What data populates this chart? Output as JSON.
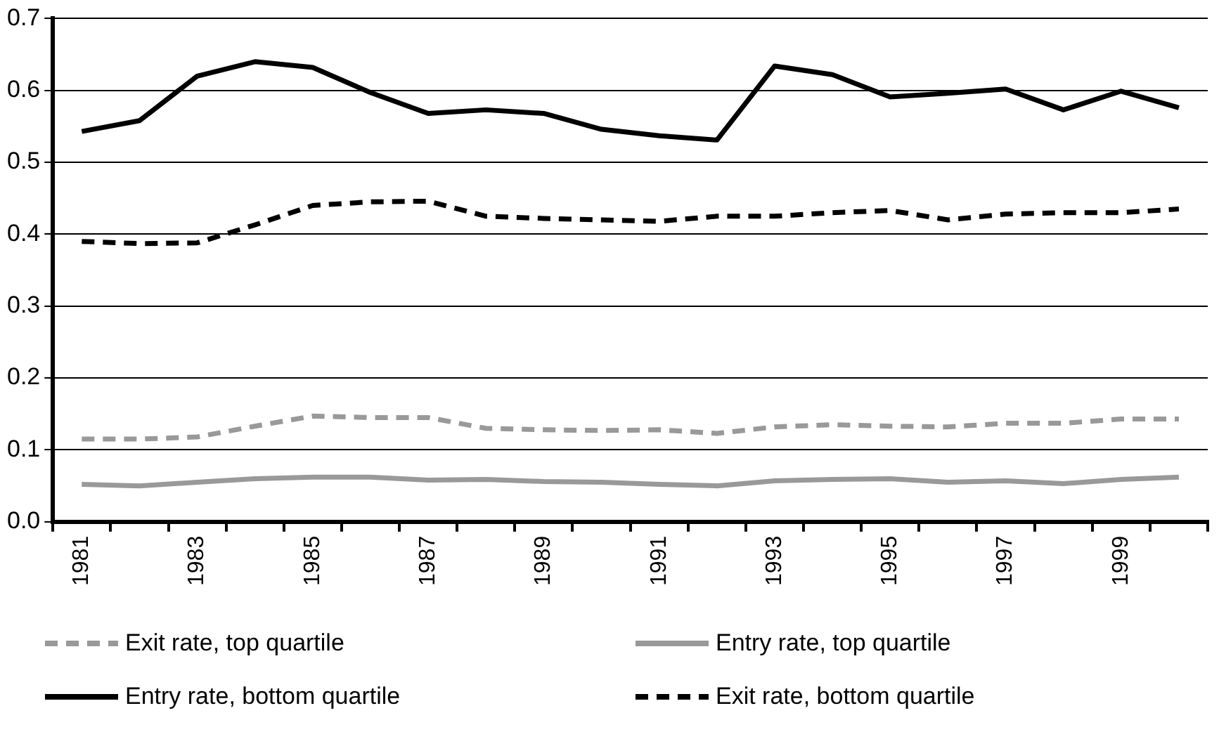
{
  "chart_data": {
    "type": "line",
    "categories": [
      "1981",
      null,
      "1983",
      null,
      "1985",
      null,
      "1987",
      null,
      "1989",
      null,
      "1991",
      null,
      "1993",
      null,
      "1995",
      null,
      "1997",
      null,
      "1999",
      null
    ],
    "series": [
      {
        "name": "Exit rate, top quartile",
        "color": "#999999",
        "line_style": "dashed",
        "values": [
          0.115,
          0.115,
          0.118,
          0.133,
          0.147,
          0.145,
          0.145,
          0.13,
          0.128,
          0.127,
          0.128,
          0.123,
          0.132,
          0.135,
          0.133,
          0.132,
          0.137,
          0.137,
          0.143,
          0.143
        ]
      },
      {
        "name": "Entry rate, top quartile",
        "color": "#999999",
        "line_style": "solid",
        "values": [
          0.052,
          0.05,
          0.055,
          0.06,
          0.062,
          0.062,
          0.058,
          0.059,
          0.056,
          0.055,
          0.052,
          0.05,
          0.057,
          0.059,
          0.06,
          0.055,
          0.057,
          0.053,
          0.059,
          0.062
        ]
      },
      {
        "name": "Entry rate, bottom quartile",
        "color": "#000000",
        "line_style": "solid",
        "values": [
          0.543,
          0.558,
          0.62,
          0.64,
          0.632,
          0.597,
          0.568,
          0.573,
          0.568,
          0.546,
          0.537,
          0.531,
          0.634,
          0.622,
          0.591,
          0.596,
          0.602,
          0.573,
          0.599,
          0.576
        ]
      },
      {
        "name": "Exit rate, bottom quartile",
        "color": "#000000",
        "line_style": "dashed",
        "values": [
          0.39,
          0.387,
          0.388,
          0.413,
          0.44,
          0.445,
          0.446,
          0.425,
          0.422,
          0.42,
          0.418,
          0.425,
          0.425,
          0.43,
          0.433,
          0.42,
          0.428,
          0.43,
          0.43,
          0.435
        ]
      }
    ],
    "ylim": [
      0,
      0.7
    ],
    "yticks": [
      {
        "value": 0,
        "label": "0.0"
      },
      {
        "value": 0.1,
        "label": "0.1"
      },
      {
        "value": 0.2,
        "label": "0.2"
      },
      {
        "value": 0.3,
        "label": "0.3"
      },
      {
        "value": 0.4,
        "label": "0.4"
      },
      {
        "value": 0.5,
        "label": "0.5"
      },
      {
        "value": 0.6,
        "label": "0.6"
      },
      {
        "value": 0.7,
        "label": "0.7"
      }
    ],
    "grid": "y",
    "legend": "bottom",
    "marker": "none"
  }
}
